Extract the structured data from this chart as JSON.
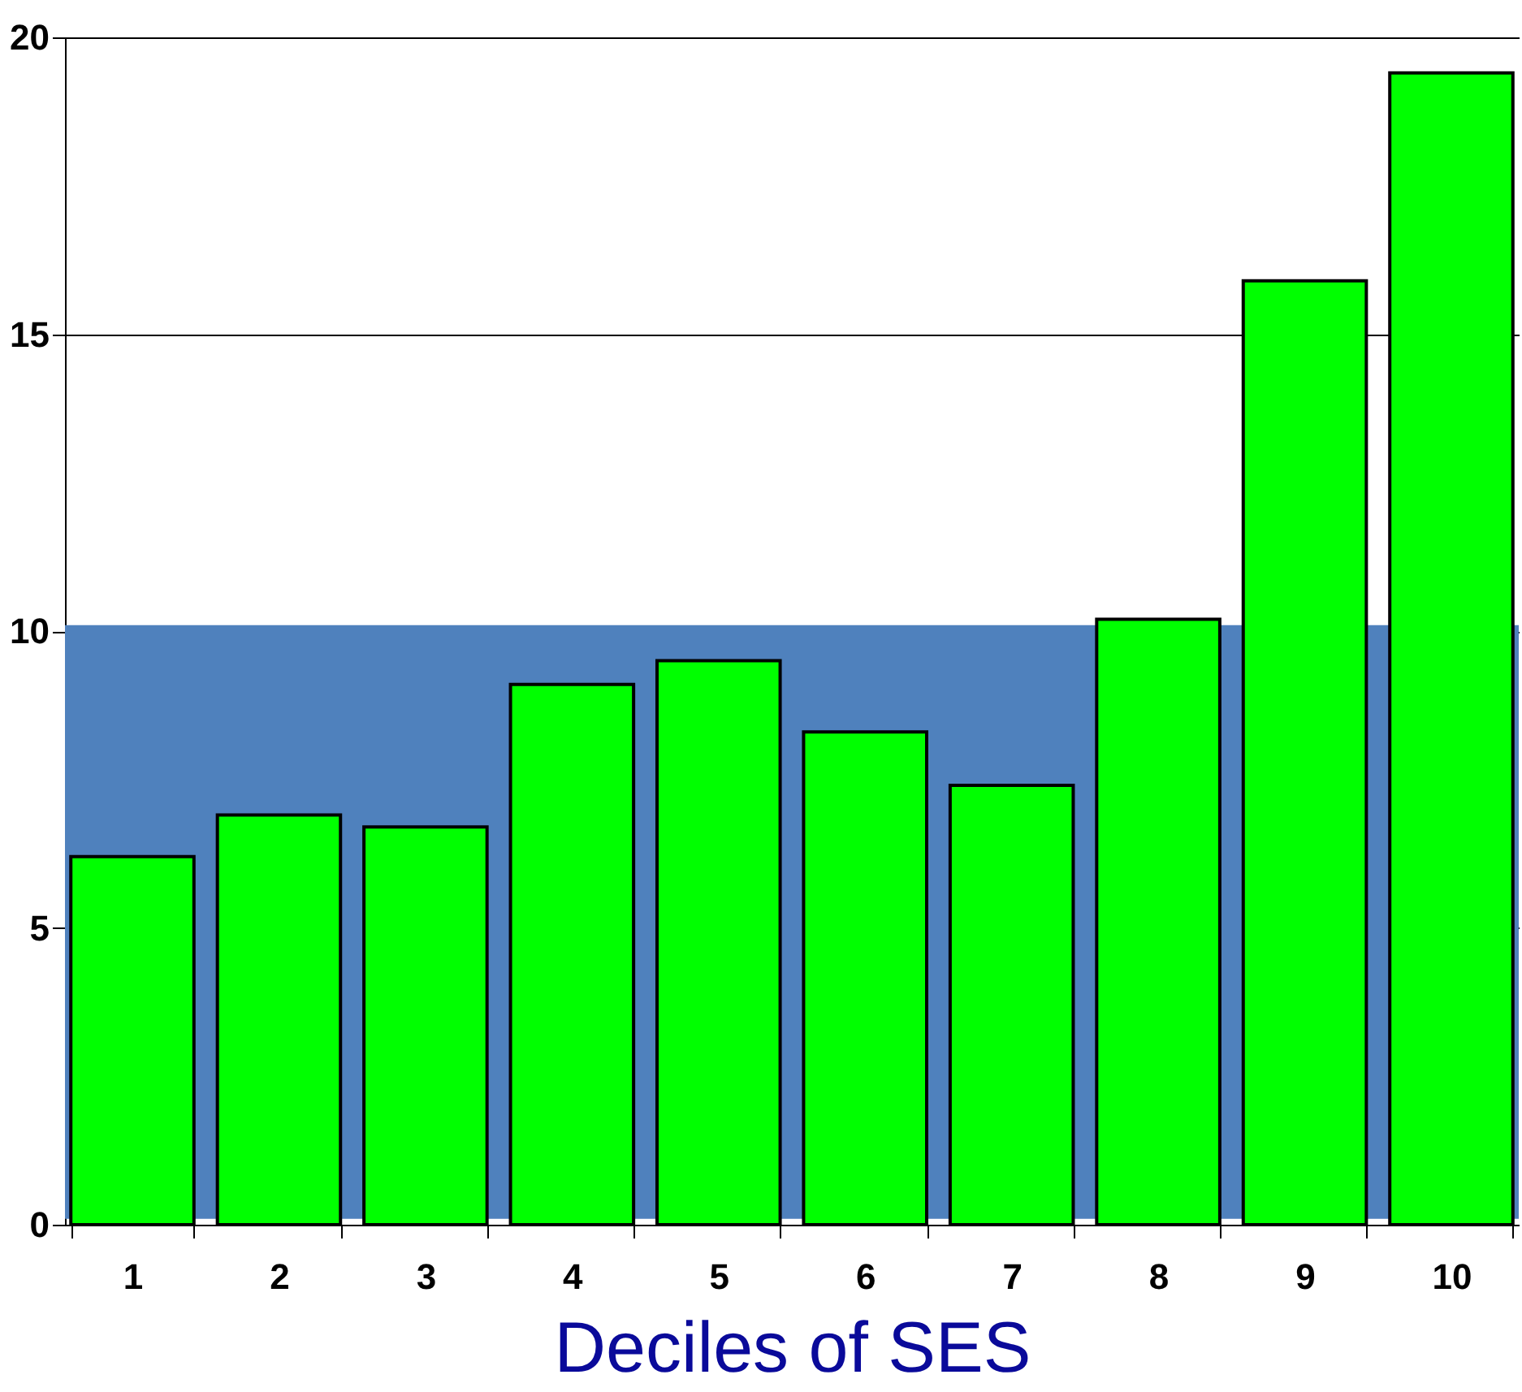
{
  "chart_data": {
    "type": "bar",
    "xlabel": "Deciles of SES",
    "categories": [
      "1",
      "2",
      "3",
      "4",
      "5",
      "6",
      "7",
      "8",
      "9",
      "10"
    ],
    "values": [
      6.2,
      6.9,
      6.7,
      9.1,
      9.5,
      8.3,
      7.4,
      10.2,
      15.9,
      19.4
    ],
    "color": "#00ff00",
    "ylim": [
      0,
      20
    ],
    "yticks": [
      0,
      5,
      10,
      15,
      20
    ],
    "grid": "y",
    "bands": [
      {
        "axis": "y",
        "from": 0.1,
        "to": 10.1,
        "color": "#4f81bd"
      }
    ]
  }
}
